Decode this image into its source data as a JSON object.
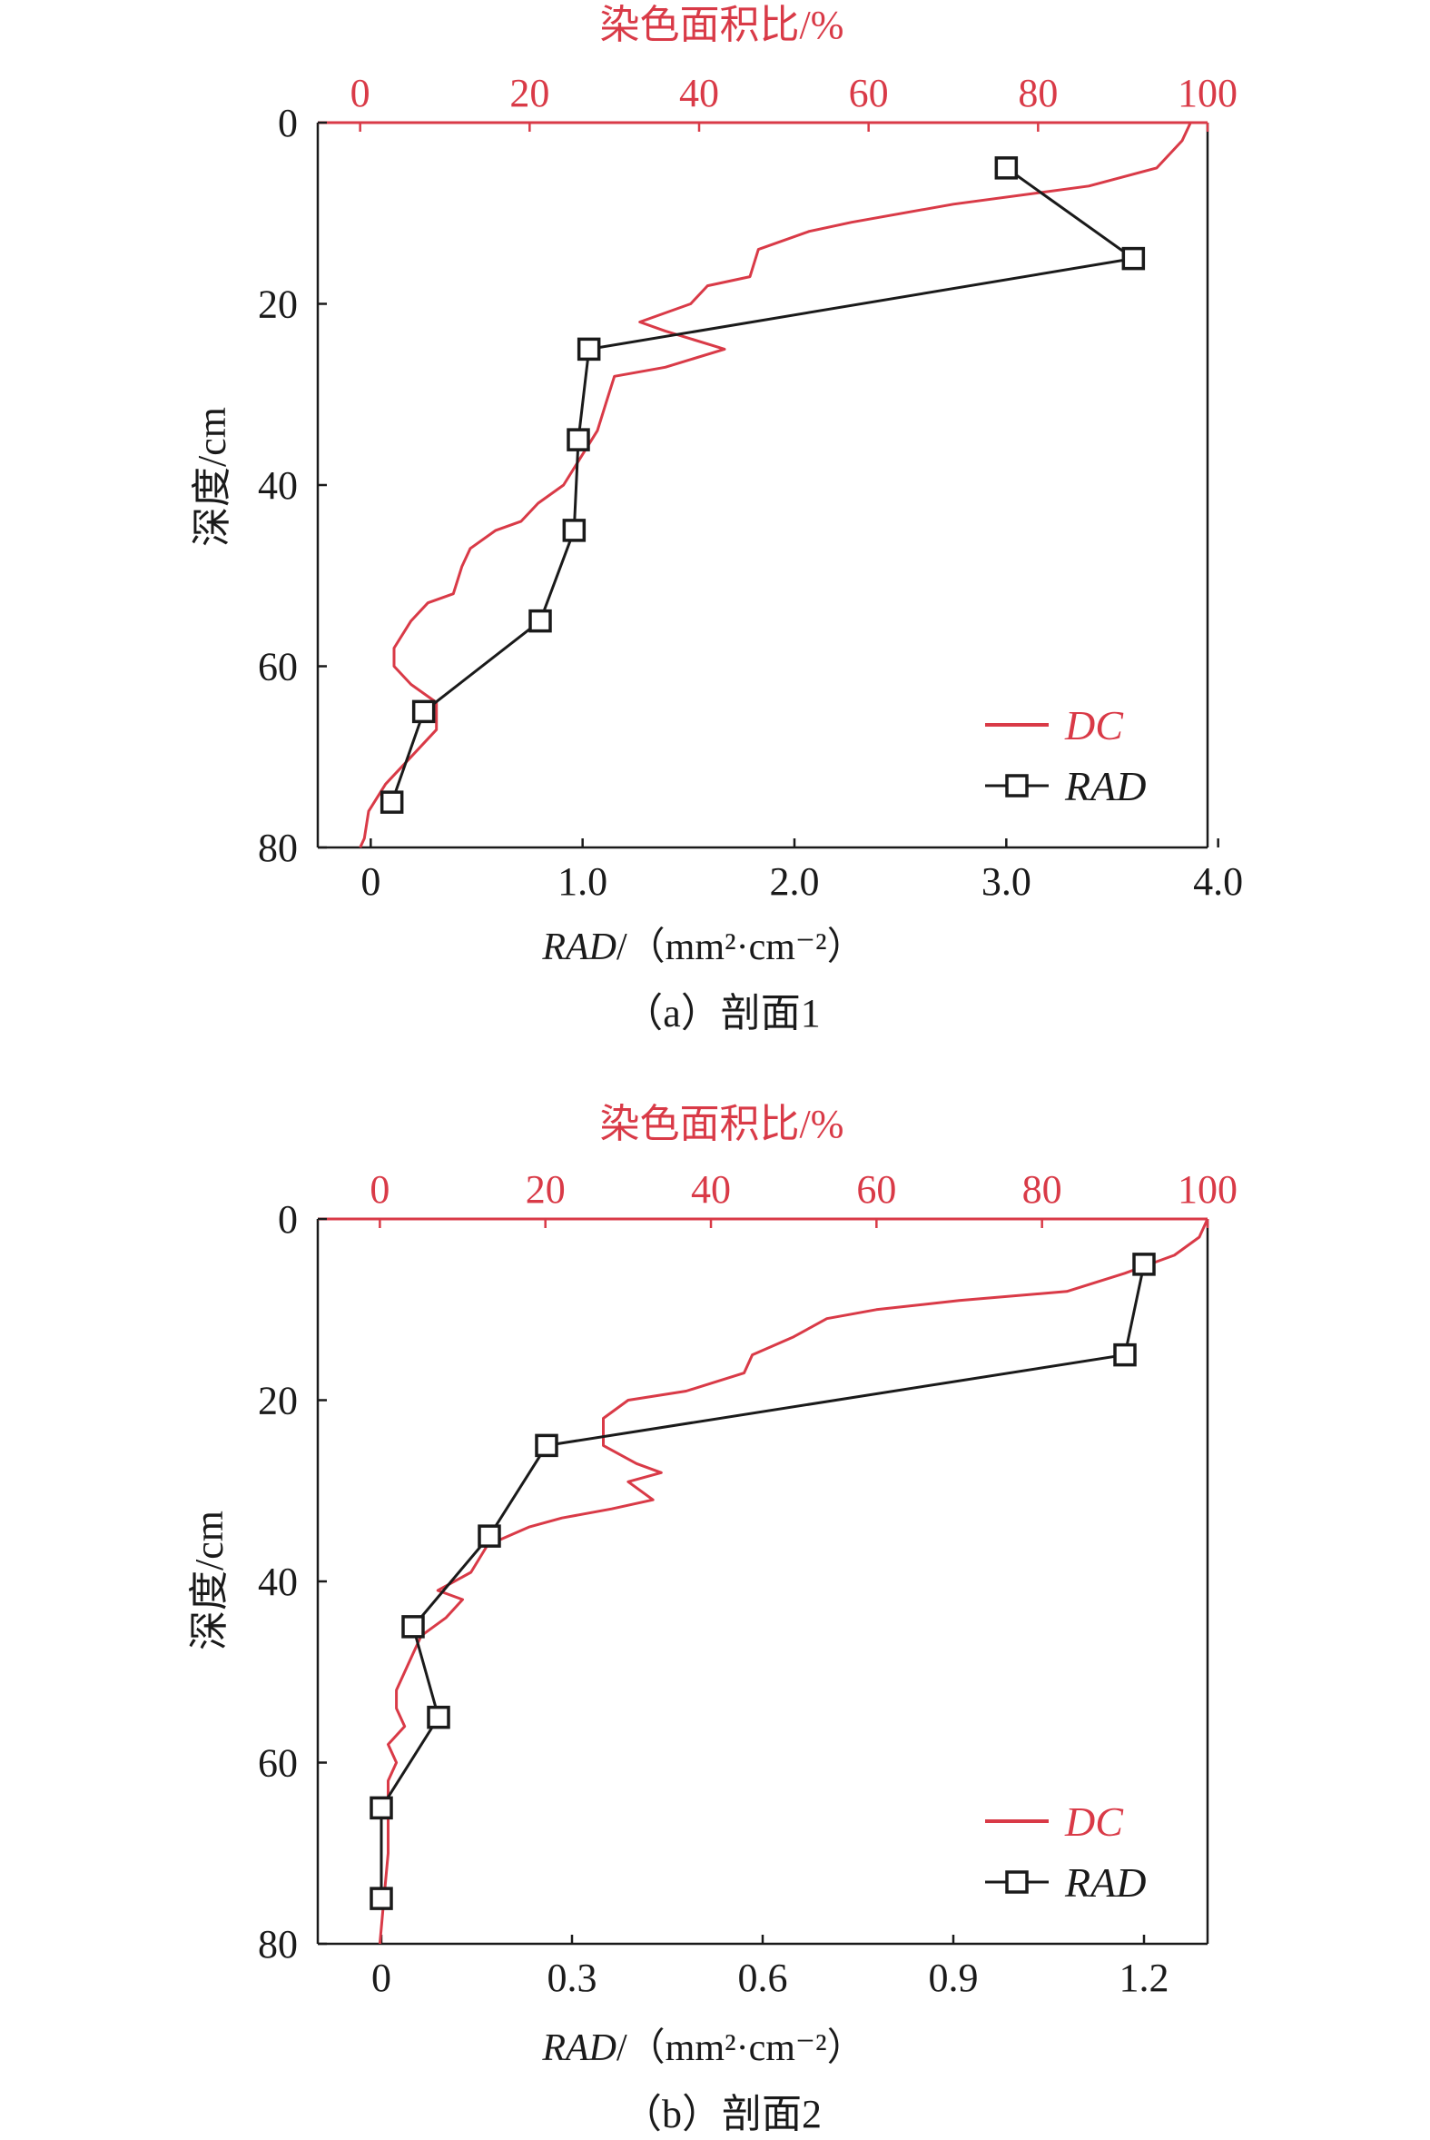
{
  "colors": {
    "dc": "#d93a47",
    "rad": "#1a1a1a",
    "axis": "#1a1a1a",
    "top_axis": "#d93a47"
  },
  "chart_data": [
    {
      "type": "line",
      "caption": "（a）剖面1",
      "top_axis_title": "染色面积比/%",
      "y_title": "深度/cm",
      "x_title_italic": "RAD",
      "x_title_rest": "/（mm²·cm⁻²）",
      "x_range": [
        -0.25,
        3.95
      ],
      "x_ticks": [
        "0",
        "1.0",
        "2.0",
        "3.0",
        "4.0"
      ],
      "x_tick_values": [
        0,
        1,
        2,
        3,
        4
      ],
      "top_range": [
        -5,
        100
      ],
      "top_ticks": [
        "0",
        "20",
        "40",
        "60",
        "80",
        "100"
      ],
      "top_tick_values": [
        0,
        20,
        40,
        60,
        80,
        100
      ],
      "y_range": [
        0,
        80
      ],
      "y_ticks": [
        "0",
        "20",
        "40",
        "60",
        "80"
      ],
      "y_tick_values": [
        0,
        20,
        40,
        60,
        80
      ],
      "legend": {
        "dc": "DC",
        "rad": "RAD",
        "position": "bottom-right"
      },
      "series": [
        {
          "name": "DC",
          "axis": "top",
          "points": [
            [
              0,
              80
            ],
            [
              0.5,
              79
            ],
            [
              1,
              76
            ],
            [
              3,
              73
            ],
            [
              6,
              70
            ],
            [
              9,
              67
            ],
            [
              9,
              64
            ],
            [
              6,
              62
            ],
            [
              4,
              60
            ],
            [
              4,
              58
            ],
            [
              6,
              55
            ],
            [
              8,
              53
            ],
            [
              11,
              52
            ],
            [
              12,
              49
            ],
            [
              13,
              47
            ],
            [
              16,
              45
            ],
            [
              19,
              44
            ],
            [
              21,
              42
            ],
            [
              24,
              40
            ],
            [
              26,
              37
            ],
            [
              28,
              34
            ],
            [
              29,
              31
            ],
            [
              30,
              28
            ],
            [
              36,
              27
            ],
            [
              43,
              25
            ],
            [
              36,
              23
            ],
            [
              33,
              22
            ],
            [
              39,
              20
            ],
            [
              41,
              18
            ],
            [
              46,
              17
            ],
            [
              47,
              14
            ],
            [
              53,
              12
            ],
            [
              58,
              11
            ],
            [
              70,
              9
            ],
            [
              86,
              7
            ],
            [
              94,
              5
            ],
            [
              97,
              2
            ],
            [
              98,
              0
            ]
          ]
        },
        {
          "name": "RAD",
          "axis": "bottom",
          "points": [
            [
              3.0,
              5
            ],
            [
              3.6,
              15
            ],
            [
              1.03,
              25
            ],
            [
              0.98,
              35
            ],
            [
              0.96,
              45
            ],
            [
              0.8,
              55
            ],
            [
              0.25,
              65
            ],
            [
              0.1,
              75
            ]
          ]
        }
      ]
    },
    {
      "type": "line",
      "caption": "（b）剖面2",
      "top_axis_title": "染色面积比/%",
      "y_title": "深度/cm",
      "x_title_italic": "RAD",
      "x_title_rest": "/（mm²·cm⁻²）",
      "x_range": [
        -0.1,
        1.3
      ],
      "x_ticks": [
        "0",
        "0.3",
        "0.6",
        "0.9",
        "1.2"
      ],
      "x_tick_values": [
        0,
        0.3,
        0.6,
        0.9,
        1.2
      ],
      "top_range": [
        -7.5,
        100
      ],
      "top_ticks": [
        "0",
        "20",
        "40",
        "60",
        "80",
        "100"
      ],
      "top_tick_values": [
        0,
        20,
        40,
        60,
        80,
        100
      ],
      "y_range": [
        0,
        80
      ],
      "y_ticks": [
        "0",
        "20",
        "40",
        "60",
        "80"
      ],
      "y_tick_values": [
        0,
        20,
        40,
        60,
        80
      ],
      "legend": {
        "dc": "DC",
        "rad": "RAD",
        "position": "bottom-right"
      },
      "series": [
        {
          "name": "DC",
          "axis": "top",
          "points": [
            [
              0,
              80
            ],
            [
              0.5,
              75
            ],
            [
              1,
              70
            ],
            [
              1,
              65
            ],
            [
              1,
              62
            ],
            [
              2,
              60
            ],
            [
              1,
              58
            ],
            [
              3,
              56
            ],
            [
              2,
              54
            ],
            [
              2,
              52
            ],
            [
              3,
              50
            ],
            [
              4,
              48
            ],
            [
              5,
              46
            ],
            [
              8,
              44
            ],
            [
              10,
              42
            ],
            [
              7,
              41
            ],
            [
              11,
              39
            ],
            [
              13,
              36
            ],
            [
              18,
              34
            ],
            [
              22,
              33
            ],
            [
              28,
              32
            ],
            [
              33,
              31
            ],
            [
              30,
              29
            ],
            [
              34,
              28
            ],
            [
              31,
              27
            ],
            [
              27,
              25
            ],
            [
              27,
              22
            ],
            [
              30,
              20
            ],
            [
              37,
              19
            ],
            [
              44,
              17
            ],
            [
              45,
              15
            ],
            [
              50,
              13
            ],
            [
              54,
              11
            ],
            [
              60,
              10
            ],
            [
              70,
              9
            ],
            [
              83,
              8
            ],
            [
              90,
              6
            ],
            [
              96,
              4
            ],
            [
              99,
              2
            ],
            [
              100,
              0
            ]
          ]
        },
        {
          "name": "RAD",
          "axis": "bottom",
          "points": [
            [
              1.2,
              5
            ],
            [
              1.17,
              15
            ],
            [
              0.26,
              25
            ],
            [
              0.17,
              35
            ],
            [
              0.05,
              45
            ],
            [
              0.09,
              55
            ],
            [
              0.0,
              65
            ],
            [
              0.0,
              75
            ]
          ]
        }
      ]
    }
  ]
}
